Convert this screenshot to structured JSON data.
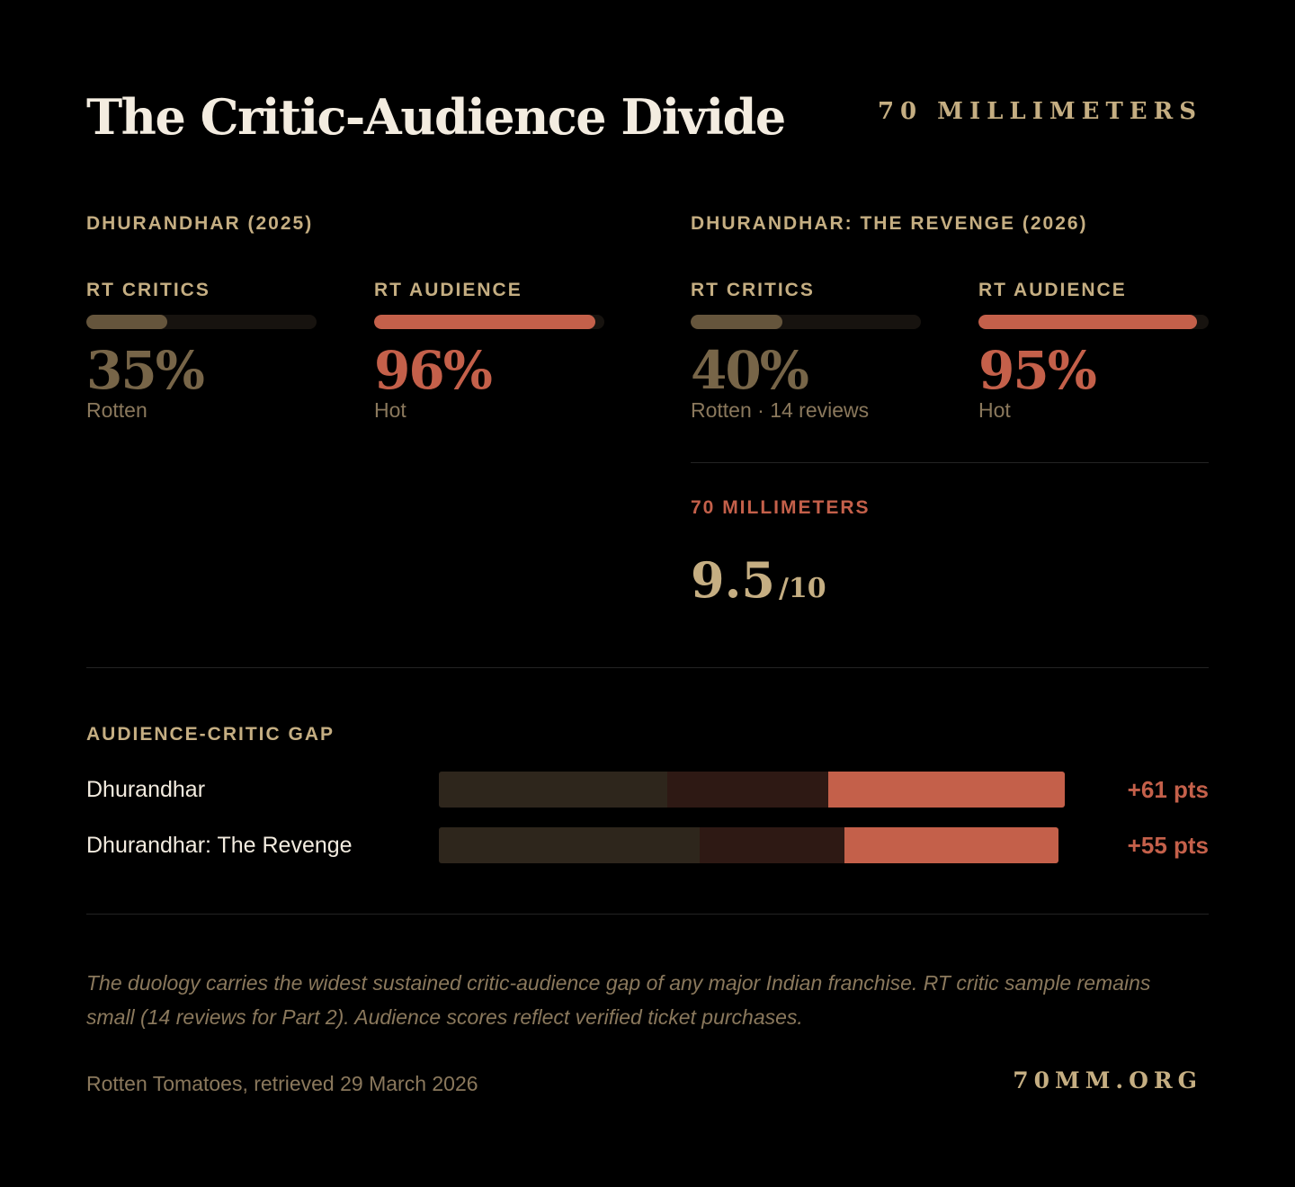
{
  "header": {
    "title": "The Critic-Audience Divide",
    "brand": "70 MILLIMETERS"
  },
  "films": [
    {
      "label": "DHURANDHAR (2025)",
      "critics": {
        "label": "RT CRITICS",
        "display": "35%",
        "value": 35,
        "sub": "Rotten"
      },
      "audience": {
        "label": "RT AUDIENCE",
        "display": "96%",
        "value": 96,
        "sub": "Hot"
      }
    },
    {
      "label": "DHURANDHAR: THE REVENGE (2026)",
      "critics": {
        "label": "RT CRITICS",
        "display": "40%",
        "value": 40,
        "sub": "Rotten · 14 reviews"
      },
      "audience": {
        "label": "RT AUDIENCE",
        "display": "95%",
        "value": 95,
        "sub": "Hot"
      }
    }
  ],
  "mm_rating": {
    "label": "70 MILLIMETERS",
    "score": "9.5",
    "out_of": "/10"
  },
  "gap_section": {
    "title": "AUDIENCE-CRITIC GAP",
    "rows": [
      {
        "name": "Dhurandhar",
        "delta": "+61 pts"
      },
      {
        "name": "Dhurandhar: The Revenge",
        "delta": "+55 pts"
      }
    ]
  },
  "chart_data": {
    "type": "bar",
    "categories": [
      "Dhurandhar",
      "Dhurandhar: The Revenge"
    ],
    "series": [
      {
        "name": "RT Critics",
        "values": [
          35,
          40
        ]
      },
      {
        "name": "RT Audience",
        "values": [
          96,
          95
        ]
      }
    ],
    "gap": [
      61,
      55
    ],
    "ylim": [
      0,
      100
    ]
  },
  "footer": {
    "note": "The duology carries the widest sustained critic-audience gap of any major Indian franchise. RT critic sample remains small (14 reviews for Part 2). Audience scores reflect verified ticket purchases.",
    "source": "Rotten Tomatoes, retrieved 29 March 2026",
    "site": "70MM.ORG"
  },
  "colors": {
    "background": "#000000",
    "critics": "#65553c",
    "audience": "#c4604a",
    "gold": "#c5ae82"
  }
}
